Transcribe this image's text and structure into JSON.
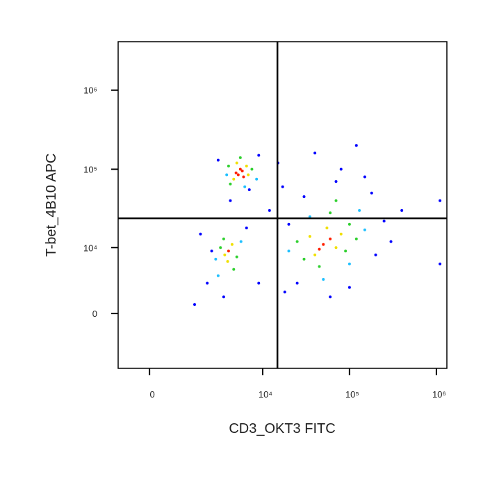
{
  "chart_data": {
    "type": "scatter",
    "xlabel": "CD3_OKT3 FITC",
    "ylabel": "T-bet_4B10 APC",
    "xscale": "biexponential",
    "yscale": "biexponential",
    "xlim": [
      -930,
      1320000
    ],
    "ylim": [
      -7100,
      4100000
    ],
    "xticks": [
      0,
      {
        "value": 10000,
        "label": "10⁴"
      },
      {
        "value": 100000,
        "label": "10⁵"
      },
      {
        "value": 1000000,
        "label": "10⁶"
      }
    ],
    "yticks": [
      0,
      {
        "value": 10000,
        "label": "10⁴"
      },
      {
        "value": 100000,
        "label": "10⁵"
      },
      {
        "value": 1000000,
        "label": "10⁶"
      }
    ],
    "gates": {
      "x": 14800,
      "y": 23900
    },
    "series": [
      {
        "color": "#0000ff",
        "x": [
          3000,
          9000,
          7000,
          2500,
          2200,
          6500,
          1500,
          3500,
          4200,
          12000,
          17000,
          25000,
          18000,
          200000,
          250000,
          180000,
          150000,
          300000,
          80000,
          40000,
          120000,
          60000,
          100000,
          400000,
          1100000,
          1100000,
          20000,
          9000,
          1800,
          30000,
          70000,
          15000
        ],
        "y": [
          130000,
          150000,
          55000,
          9000,
          3000,
          18000,
          800,
          1500,
          40000,
          30000,
          60000,
          3000,
          2000,
          8000,
          22000,
          50000,
          80000,
          12000,
          100000,
          160000,
          200000,
          1500,
          2500,
          30000,
          40000,
          6000,
          20000,
          3000,
          15000,
          45000,
          70000,
          120000
        ]
      },
      {
        "color": "#20c0ff",
        "x": [
          3800,
          8500,
          6200,
          2800,
          5600,
          3000,
          20000,
          150000,
          50000,
          100000,
          35000,
          130000
        ],
        "y": [
          85000,
          75000,
          60000,
          7000,
          12000,
          4000,
          9000,
          17000,
          3500,
          6000,
          25000,
          30000
        ]
      },
      {
        "color": "#30d030",
        "x": [
          4200,
          7500,
          5500,
          4000,
          3200,
          5000,
          3500,
          4600,
          25000,
          30000,
          90000,
          100000,
          60000,
          45000,
          120000,
          70000
        ],
        "y": [
          65000,
          100000,
          140000,
          110000,
          10000,
          7500,
          13000,
          5000,
          12000,
          7000,
          9000,
          20000,
          28000,
          5500,
          13000,
          40000
        ]
      },
      {
        "color": "#f0e000",
        "x": [
          4600,
          6500,
          5000,
          6800,
          3600,
          4400,
          3900,
          35000,
          70000,
          55000,
          40000,
          80000
        ],
        "y": [
          75000,
          110000,
          120000,
          85000,
          8000,
          11000,
          6500,
          14000,
          10000,
          18000,
          8000,
          15000
        ]
      },
      {
        "color": "#ff2000",
        "x": [
          5200,
          5800,
          6000,
          5500,
          4900,
          50000,
          60000,
          45000,
          4000
        ],
        "y": [
          85000,
          95000,
          80000,
          100000,
          90000,
          11000,
          13000,
          9500,
          9000
        ]
      }
    ]
  }
}
